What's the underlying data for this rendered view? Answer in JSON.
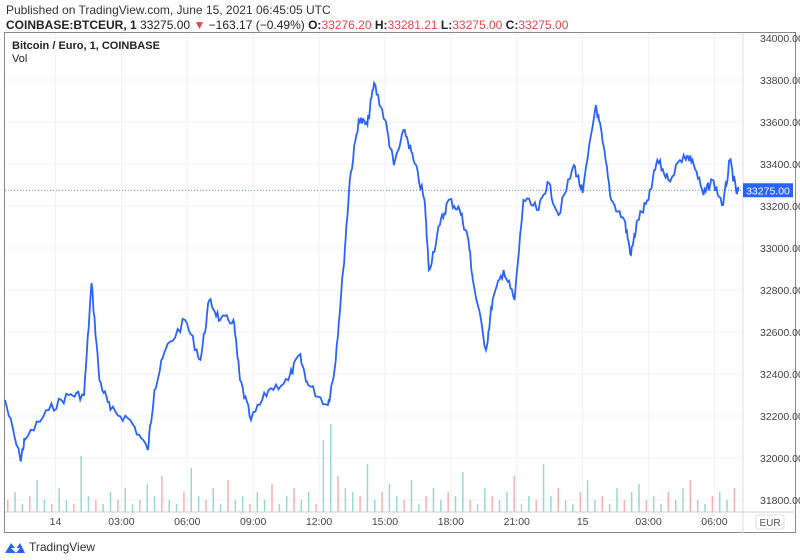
{
  "header": {
    "published": "Published on TradingView.com, June 15, 2021 06:45:05 UTC",
    "symbol": "COINBASE:BTCEUR, 1",
    "last": "33275.00",
    "change": "−163.17 (−0.49%)",
    "o_label": "O:",
    "o": "33276.20",
    "h_label": "H:",
    "h": "33281.21",
    "l_label": "L:",
    "l": "33275.00",
    "c_label": "C:",
    "c": "33275.00"
  },
  "chart_title": "Bitcoin / Euro, 1, COINBASE",
  "volume_label": "Vol",
  "currency": "EUR",
  "logo_text": "TradingView",
  "colors": {
    "line": "#2962ff",
    "up": "#26a69a",
    "down": "#ef5350",
    "grid": "#f0f3fa"
  },
  "chart_data": {
    "type": "line",
    "title": "Bitcoin / Euro, 1, COINBASE",
    "ylim": [
      31750,
      34000
    ],
    "y_ticks": [
      "34000.00",
      "33800.00",
      "33600.00",
      "33400.00",
      "33200.00",
      "33000.00",
      "32800.00",
      "32600.00",
      "32400.00",
      "32200.00",
      "32000.00",
      "31800.00"
    ],
    "x_ticks": [
      {
        "h": 0,
        "label": "14"
      },
      {
        "h": 3,
        "label": "03:00"
      },
      {
        "h": 6,
        "label": "06:00"
      },
      {
        "h": 9,
        "label": "09:00"
      },
      {
        "h": 12,
        "label": "12:00"
      },
      {
        "h": 15,
        "label": "15:00"
      },
      {
        "h": 18,
        "label": "18:00"
      },
      {
        "h": 21,
        "label": "21:00"
      },
      {
        "h": 24,
        "label": "15"
      },
      {
        "h": 27,
        "label": "03:00"
      },
      {
        "h": 30,
        "label": "06:00"
      }
    ],
    "x_unit": "hours since 2021-06-14 00:00 UTC",
    "xlim": [
      -2.3,
      31.3
    ],
    "last_price": 33275.0,
    "last_price_label": "33275.00",
    "series": [
      {
        "name": "BTCEUR",
        "points": [
          [
            -2.3,
            32276
          ],
          [
            -1.6,
            31990
          ],
          [
            -1.4,
            32086
          ],
          [
            -0.3,
            32229
          ],
          [
            0.6,
            32300
          ],
          [
            1.3,
            32300
          ],
          [
            1.64,
            32833
          ],
          [
            2.0,
            32371
          ],
          [
            2.5,
            32229
          ],
          [
            3.4,
            32181
          ],
          [
            4.2,
            32038
          ],
          [
            4.5,
            32324
          ],
          [
            5.0,
            32514
          ],
          [
            5.9,
            32657
          ],
          [
            6.6,
            32467
          ],
          [
            7.0,
            32752
          ],
          [
            7.5,
            32657
          ],
          [
            8.1,
            32657
          ],
          [
            8.4,
            32371
          ],
          [
            8.9,
            32181
          ],
          [
            9.7,
            32324
          ],
          [
            10.6,
            32371
          ],
          [
            11.1,
            32490
          ],
          [
            11.5,
            32348
          ],
          [
            12.4,
            32252
          ],
          [
            12.7,
            32419
          ],
          [
            13.1,
            32895
          ],
          [
            13.4,
            33324
          ],
          [
            13.8,
            33610
          ],
          [
            14.2,
            33586
          ],
          [
            14.5,
            33786
          ],
          [
            15.0,
            33610
          ],
          [
            15.4,
            33395
          ],
          [
            15.9,
            33562
          ],
          [
            16.3,
            33419
          ],
          [
            16.8,
            33229
          ],
          [
            17.0,
            32895
          ],
          [
            17.5,
            33110
          ],
          [
            17.9,
            33229
          ],
          [
            18.4,
            33181
          ],
          [
            18.8,
            33038
          ],
          [
            19.0,
            32848
          ],
          [
            19.6,
            32514
          ],
          [
            19.9,
            32752
          ],
          [
            20.4,
            32895
          ],
          [
            20.9,
            32752
          ],
          [
            21.3,
            33229
          ],
          [
            22.0,
            33181
          ],
          [
            22.4,
            33314
          ],
          [
            22.9,
            33157
          ],
          [
            23.6,
            33395
          ],
          [
            24.0,
            33262
          ],
          [
            24.6,
            33681
          ],
          [
            24.9,
            33514
          ],
          [
            25.3,
            33229
          ],
          [
            25.9,
            33133
          ],
          [
            26.2,
            32967
          ],
          [
            26.5,
            33133
          ],
          [
            27.0,
            33229
          ],
          [
            27.4,
            33419
          ],
          [
            27.9,
            33324
          ],
          [
            28.6,
            33443
          ],
          [
            29.0,
            33419
          ],
          [
            29.5,
            33252
          ],
          [
            29.9,
            33324
          ],
          [
            30.4,
            33205
          ],
          [
            30.7,
            33419
          ],
          [
            31.0,
            33262
          ],
          [
            31.1,
            33275
          ]
        ]
      }
    ],
    "volume": [
      3,
      5,
      2,
      4,
      8,
      3,
      2,
      6,
      3,
      2,
      14,
      4,
      3,
      2,
      5,
      3,
      6,
      2,
      3,
      7,
      4,
      9,
      3,
      2,
      5,
      11,
      4,
      3,
      6,
      2,
      8,
      3,
      4,
      2,
      5,
      3,
      7,
      2,
      4,
      6,
      3,
      5,
      2,
      18,
      22,
      9,
      6,
      5,
      4,
      12,
      3,
      5,
      7,
      4,
      3,
      8,
      2,
      4,
      6,
      3,
      5,
      4,
      10,
      3,
      2,
      6,
      4,
      3,
      5,
      9,
      2,
      4,
      3,
      12,
      4,
      6,
      3,
      2,
      5,
      8,
      3,
      4,
      2,
      6,
      3,
      5,
      7,
      3,
      4,
      2,
      5,
      3,
      6,
      8,
      3,
      2,
      4,
      5,
      3,
      6
    ]
  }
}
